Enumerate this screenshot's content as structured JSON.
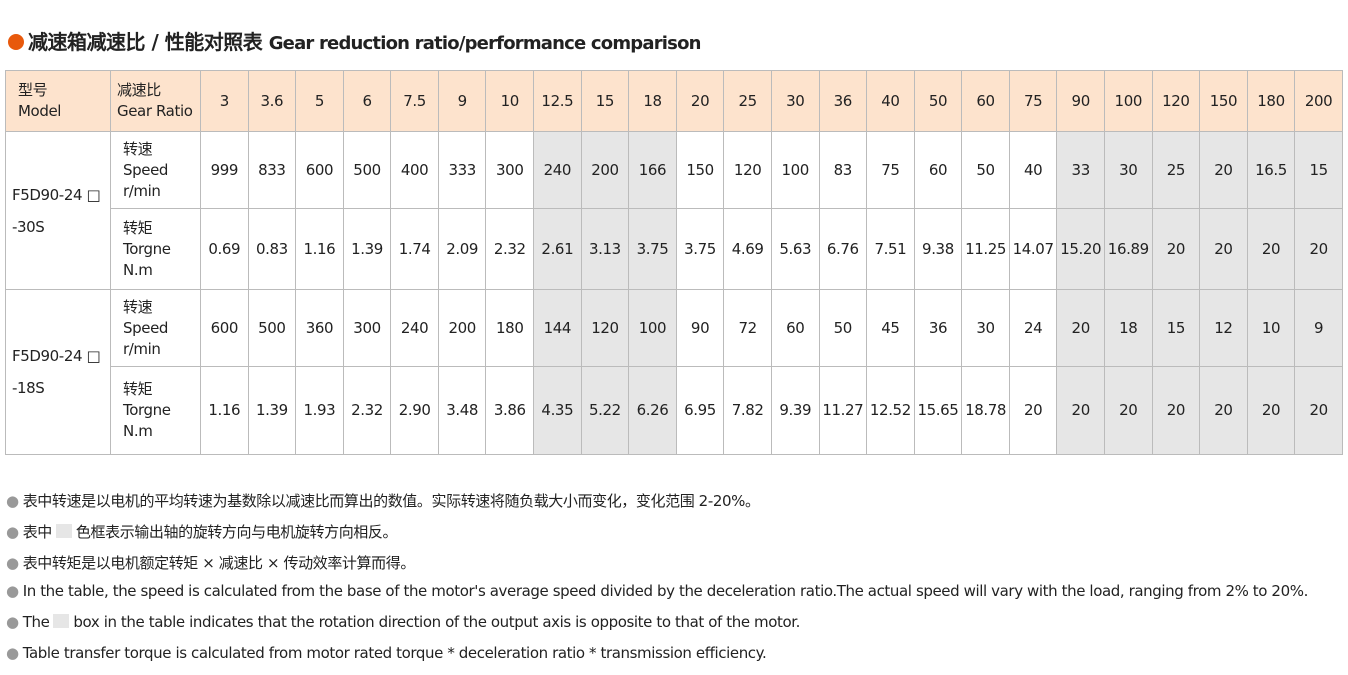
{
  "header": {
    "title_cn": "减速箱减速比 / 性能对照表",
    "title_en": "Gear reduction ratio/performance comparison"
  },
  "table": {
    "head": {
      "model_cn": "型号",
      "model_en": "Model",
      "ratio_cn": "减速比",
      "ratio_en": "Gear Ratio",
      "ratios": [
        "3",
        "3.6",
        "5",
        "6",
        "7.5",
        "9",
        "10",
        "12.5",
        "15",
        "18",
        "20",
        "25",
        "30",
        "36",
        "40",
        "50",
        "60",
        "75",
        "90",
        "100",
        "120",
        "150",
        "180",
        "200"
      ]
    },
    "groups": [
      {
        "model": [
          "F5D90-24 □",
          "-30S"
        ],
        "rows": [
          {
            "label": [
              "转速",
              "Speed",
              "r/min"
            ],
            "values": [
              "999",
              "833",
              "600",
              "500",
              "400",
              "333",
              "300",
              "240",
              "200",
              "166",
              "150",
              "120",
              "100",
              "83",
              "75",
              "60",
              "50",
              "40",
              "33",
              "30",
              "25",
              "20",
              "16.5",
              "15"
            ]
          },
          {
            "label": [
              "转矩",
              "Torgne",
              "N.m"
            ],
            "values": [
              "0.69",
              "0.83",
              "1.16",
              "1.39",
              "1.74",
              "2.09",
              "2.32",
              "2.61",
              "3.13",
              "3.75",
              "3.75",
              "4.69",
              "5.63",
              "6.76",
              "7.51",
              "9.38",
              "11.25",
              "14.07",
              "15.20",
              "16.89",
              "20",
              "20",
              "20",
              "20"
            ]
          }
        ]
      },
      {
        "model": [
          "F5D90-24 □",
          "-18S"
        ],
        "rows": [
          {
            "label": [
              "转速",
              "Speed",
              "r/min"
            ],
            "values": [
              "600",
              "500",
              "360",
              "300",
              "240",
              "200",
              "180",
              "144",
              "120",
              "100",
              "90",
              "72",
              "60",
              "50",
              "45",
              "36",
              "30",
              "24",
              "20",
              "18",
              "15",
              "12",
              "10",
              "9"
            ]
          },
          {
            "label": [
              "转矩",
              "Torgne",
              "N.m"
            ],
            "values": [
              "1.16",
              "1.39",
              "1.93",
              "2.32",
              "2.90",
              "3.48",
              "3.86",
              "4.35",
              "5.22",
              "6.26",
              "6.95",
              "7.82",
              "9.39",
              "11.27",
              "12.52",
              "15.65",
              "18.78",
              "20",
              "20",
              "20",
              "20",
              "20",
              "20",
              "20"
            ]
          }
        ]
      }
    ]
  },
  "notes": [
    [
      "表中转速是以电机的平均转速为基数除以减速比而算出的数值。实际转速将随负载大小而变化，变化范围 2-20%。"
    ],
    [
      "表中",
      "色框表示输出轴的旋转方向与电机旋转方向相反。"
    ],
    [
      "表中转矩是以电机额定转矩 × 减速比 × 传动效率计算而得。"
    ],
    [
      "In the table, the speed is calculated from the base of the motor's average speed  divided by the deceleration ratio.The actual speed will vary with the load, ranging from 2% to 20%."
    ],
    [
      "The",
      "box in the table indicates that the rotation direction of the output axis is opposite to that of the motor."
    ],
    [
      "Table transfer torque is calculated from motor rated torque * deceleration ratio * transmission efficiency."
    ]
  ]
}
